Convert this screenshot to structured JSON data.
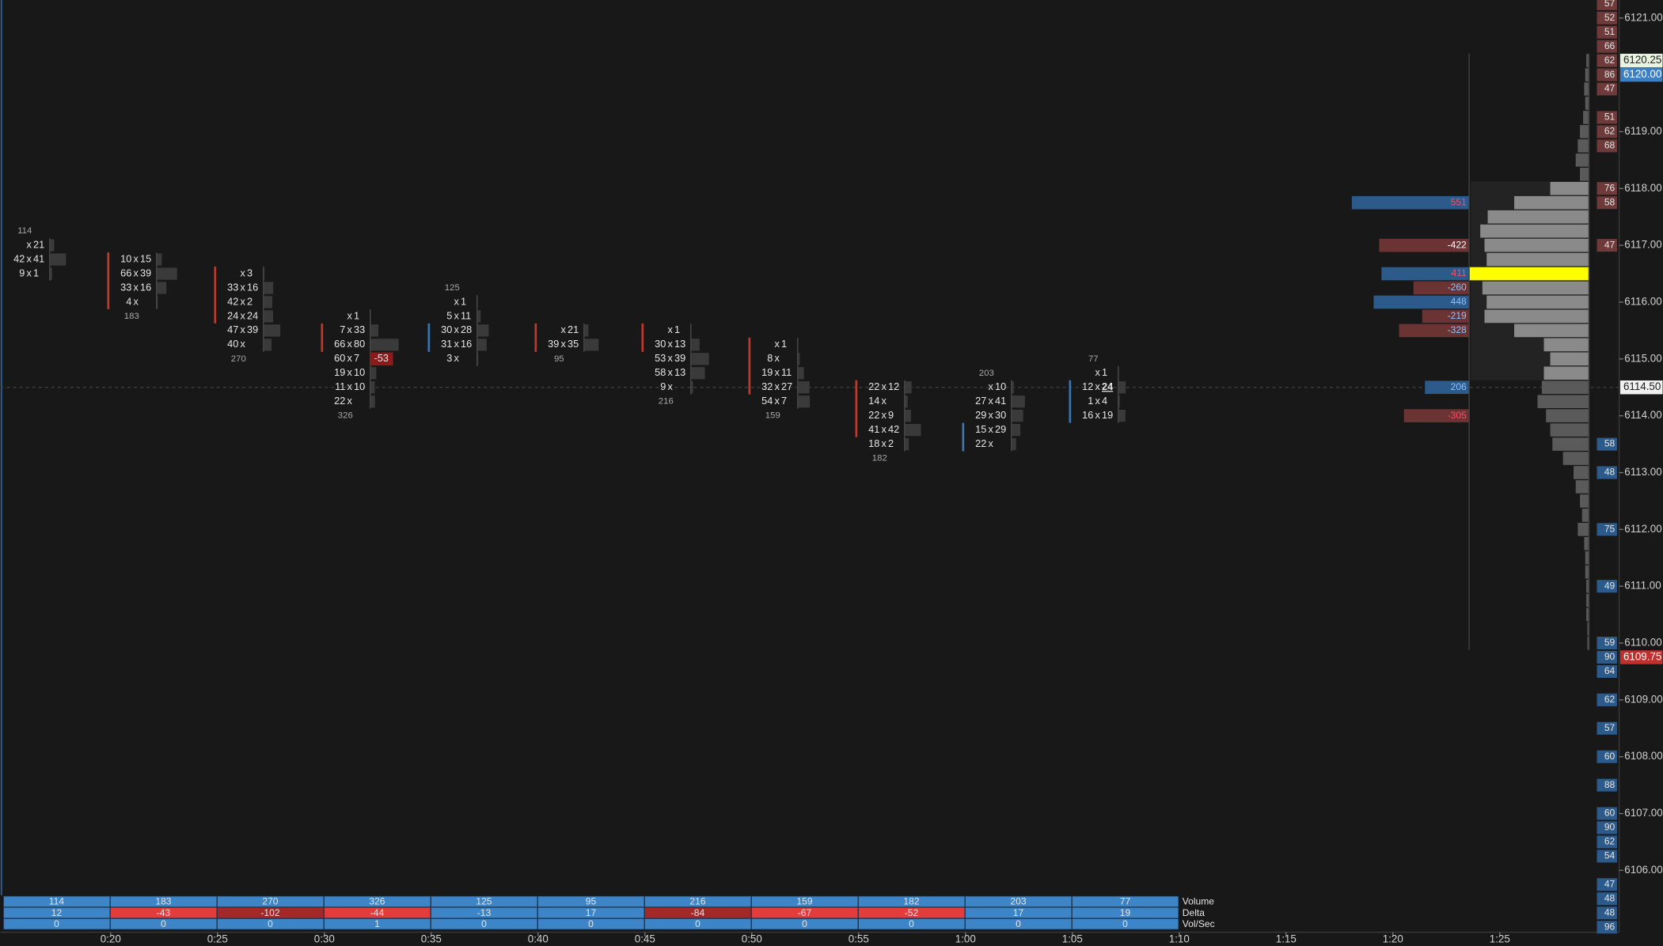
{
  "price_axis": {
    "ticks": [
      {
        "value": 6121,
        "label": "6121.00"
      },
      {
        "value": 6119,
        "label": "6119.00"
      },
      {
        "value": 6118,
        "label": "6118.00"
      },
      {
        "value": 6117,
        "label": "6117.00"
      },
      {
        "value": 6116,
        "label": "6116.00"
      },
      {
        "value": 6115,
        "label": "6115.00"
      },
      {
        "value": 6114,
        "label": "6114.00"
      },
      {
        "value": 6113,
        "label": "6113.00"
      },
      {
        "value": 6112,
        "label": "6112.00"
      },
      {
        "value": 6111,
        "label": "6111.00"
      },
      {
        "value": 6110,
        "label": "6110.00"
      },
      {
        "value": 6109,
        "label": "6109.00"
      },
      {
        "value": 6108,
        "label": "6108.00"
      },
      {
        "value": 6107,
        "label": "6107.00"
      },
      {
        "value": 6106,
        "label": "6106.00"
      }
    ],
    "markers": [
      {
        "value": 6120.25,
        "label": "6120.25",
        "bg": "#e8f4e0",
        "fg": "#202020"
      },
      {
        "value": 6120,
        "label": "6120.00",
        "bg": "#3d7fc0",
        "fg": "#ffffff"
      },
      {
        "value": 6114.5,
        "label": "6114.50",
        "bg": "#f0f0f0",
        "fg": "#202020"
      },
      {
        "value": 6109.75,
        "label": "6109.75",
        "bg": "#c0302c",
        "fg": "#ffffff"
      }
    ],
    "last_price": 6114.5
  },
  "time_axis": {
    "labels": [
      "0:20",
      "0:25",
      "0:30",
      "0:35",
      "0:40",
      "0:45",
      "0:50",
      "0:55",
      "1:00",
      "1:05",
      "1:10",
      "1:15",
      "1:20",
      "1:25"
    ]
  },
  "footprint": {
    "separator": "x",
    "up_color": "#3a75b0",
    "down_color": "#c0392b",
    "bars": [
      {
        "total": 114,
        "total_price": 6117.25,
        "rows": [
          {
            "price": 6117,
            "bid": null,
            "ask": 21
          },
          {
            "price": 6116.75,
            "bid": 42,
            "ask": 41
          },
          {
            "price": 6116.5,
            "bid": 9,
            "ask": 1
          }
        ]
      },
      {
        "total": 183,
        "total_price": 6115.75,
        "candle": {
          "top": 6116.75,
          "bottom": 6116,
          "dir": "down"
        },
        "rows": [
          {
            "price": 6116.75,
            "bid": 10,
            "ask": 15
          },
          {
            "price": 6116.5,
            "bid": 66,
            "ask": 39
          },
          {
            "price": 6116.25,
            "bid": 33,
            "ask": 16
          },
          {
            "price": 6116,
            "bid": 4,
            "ask": null
          }
        ]
      },
      {
        "total": 270,
        "total_price": 6115,
        "candle": {
          "top": 6116.5,
          "bottom": 6115.75,
          "dir": "down"
        },
        "rows": [
          {
            "price": 6116.5,
            "bid": null,
            "ask": 3
          },
          {
            "price": 6116.25,
            "bid": 33,
            "ask": 16
          },
          {
            "price": 6116,
            "bid": 42,
            "ask": 2
          },
          {
            "price": 6115.75,
            "bid": 24,
            "ask": 24
          },
          {
            "price": 6115.5,
            "bid": 47,
            "ask": 39
          },
          {
            "price": 6115.25,
            "bid": 40,
            "ask": null
          }
        ]
      },
      {
        "total": 326,
        "total_price": 6114,
        "candle": {
          "top": 6115.5,
          "bottom": 6115.25,
          "dir": "down"
        },
        "rows": [
          {
            "price": 6115.75,
            "bid": null,
            "ask": 1
          },
          {
            "price": 6115.5,
            "bid": 7,
            "ask": 33
          },
          {
            "price": 6115.25,
            "bid": 66,
            "ask": 80
          },
          {
            "price": 6115,
            "bid": 60,
            "ask": 7,
            "imbalance": -53
          },
          {
            "price": 6114.75,
            "bid": 19,
            "ask": 10
          },
          {
            "price": 6114.5,
            "bid": 11,
            "ask": 10
          },
          {
            "price": 6114.25,
            "bid": 22,
            "ask": null
          }
        ]
      },
      {
        "total": 125,
        "total_price": 6116.25,
        "candle": {
          "top": 6115.5,
          "bottom": 6115.25,
          "dir": "up"
        },
        "rows": [
          {
            "price": 6116,
            "bid": null,
            "ask": 1
          },
          {
            "price": 6115.75,
            "bid": 5,
            "ask": 11
          },
          {
            "price": 6115.5,
            "bid": 30,
            "ask": 28
          },
          {
            "price": 6115.25,
            "bid": 31,
            "ask": 16
          },
          {
            "price": 6115,
            "bid": 3,
            "ask": null
          }
        ]
      },
      {
        "total": 95,
        "total_price": 6115,
        "candle": {
          "top": 6115.5,
          "bottom": 6115.25,
          "dir": "down"
        },
        "rows": [
          {
            "price": 6115.5,
            "bid": null,
            "ask": 21
          },
          {
            "price": 6115.25,
            "bid": 39,
            "ask": 35
          }
        ]
      },
      {
        "total": 216,
        "total_price": 6114.25,
        "candle": {
          "top": 6115.5,
          "bottom": 6115.25,
          "dir": "down"
        },
        "rows": [
          {
            "price": 6115.5,
            "bid": null,
            "ask": 1
          },
          {
            "price": 6115.25,
            "bid": 30,
            "ask": 13
          },
          {
            "price": 6115,
            "bid": 53,
            "ask": 39
          },
          {
            "price": 6114.75,
            "bid": 58,
            "ask": 13
          },
          {
            "price": 6114.5,
            "bid": 9,
            "ask": null
          }
        ]
      },
      {
        "total": 159,
        "total_price": 6114,
        "candle": {
          "top": 6115.25,
          "bottom": 6114.5,
          "dir": "down"
        },
        "rows": [
          {
            "price": 6115.25,
            "bid": null,
            "ask": 1
          },
          {
            "price": 6115,
            "bid": 8,
            "ask": null
          },
          {
            "price": 6114.75,
            "bid": 19,
            "ask": 11
          },
          {
            "price": 6114.5,
            "bid": 32,
            "ask": 27
          },
          {
            "price": 6114.25,
            "bid": 54,
            "ask": 7
          }
        ]
      },
      {
        "total": 182,
        "total_price": 6113.25,
        "candle": {
          "top": 6114.5,
          "bottom": 6113.75,
          "dir": "down"
        },
        "rows": [
          {
            "price": 6114.5,
            "bid": 22,
            "ask": 12
          },
          {
            "price": 6114.25,
            "bid": 14,
            "ask": null
          },
          {
            "price": 6114,
            "bid": 22,
            "ask": 9
          },
          {
            "price": 6113.75,
            "bid": 41,
            "ask": 42
          },
          {
            "price": 6113.5,
            "bid": 18,
            "ask": 2
          }
        ]
      },
      {
        "total": 203,
        "total_price": 6114.75,
        "candle": {
          "top": 6113.75,
          "bottom": 6113.5,
          "dir": "up"
        },
        "rows": [
          {
            "price": 6114.5,
            "bid": null,
            "ask": 10
          },
          {
            "price": 6114.25,
            "bid": 27,
            "ask": 41
          },
          {
            "price": 6114,
            "bid": 29,
            "ask": 30
          },
          {
            "price": 6113.75,
            "bid": 15,
            "ask": 29
          },
          {
            "price": 6113.5,
            "bid": 22,
            "ask": null
          }
        ]
      },
      {
        "total": 77,
        "total_price": 6115,
        "candle": {
          "top": 6114.5,
          "bottom": 6114,
          "dir": "up"
        },
        "rows": [
          {
            "price": 6114.75,
            "bid": null,
            "ask": 1
          },
          {
            "price": 6114.5,
            "bid": 12,
            "ask": 24,
            "ask_bold": true
          },
          {
            "price": 6114.25,
            "bid": 1,
            "ask": 4
          },
          {
            "price": 6114,
            "bid": 16,
            "ask": 19
          }
        ]
      }
    ]
  },
  "delta_profile": {
    "pos_color": "#2c5a8a",
    "neg_color": "#6b3333",
    "levels": [
      {
        "price": 6117.75,
        "value": 551,
        "label_color": "#ff4d6a"
      },
      {
        "price": 6117,
        "value": -422,
        "label_color": "#ffffff"
      },
      {
        "price": 6116.5,
        "value": 411,
        "label_color": "#ff4d6a"
      },
      {
        "price": 6116.25,
        "value": -260,
        "label_color": "#8fc3ff"
      },
      {
        "price": 6116,
        "value": 448,
        "label_color": "#8fc3ff"
      },
      {
        "price": 6115.75,
        "value": -219,
        "label_color": "#8fc3ff"
      },
      {
        "price": 6115.5,
        "value": -328,
        "label_color": "#8fc3ff"
      },
      {
        "price": 6114.5,
        "value": 206,
        "label_color": "#8fc3ff"
      },
      {
        "price": 6114,
        "value": -305,
        "label_color": "#ff4d6a"
      }
    ]
  },
  "volume_profile": {
    "poc": 6116.5,
    "value_area": [
      6118,
      6114.75
    ],
    "color": "#5a5a5a",
    "va_color": "#8a8a8a",
    "poc_color": "#ffff00",
    "levels": [
      {
        "price": 6120.25,
        "volume": 2
      },
      {
        "price": 6120,
        "volume": 3
      },
      {
        "price": 6119.75,
        "volume": 4
      },
      {
        "price": 6119.5,
        "volume": 3
      },
      {
        "price": 6119.25,
        "volume": 5
      },
      {
        "price": 6119,
        "volume": 8
      },
      {
        "price": 6118.75,
        "volume": 10
      },
      {
        "price": 6118.5,
        "volume": 12
      },
      {
        "price": 6118.25,
        "volume": 8
      },
      {
        "price": 6118,
        "volume": 36
      },
      {
        "price": 6117.75,
        "volume": 70
      },
      {
        "price": 6117.5,
        "volume": 95
      },
      {
        "price": 6117.25,
        "volume": 102
      },
      {
        "price": 6117,
        "volume": 98
      },
      {
        "price": 6116.75,
        "volume": 96
      },
      {
        "price": 6116.5,
        "volume": 112
      },
      {
        "price": 6116.25,
        "volume": 100
      },
      {
        "price": 6116,
        "volume": 96
      },
      {
        "price": 6115.75,
        "volume": 98
      },
      {
        "price": 6115.5,
        "volume": 70
      },
      {
        "price": 6115.25,
        "volume": 42
      },
      {
        "price": 6115,
        "volume": 36
      },
      {
        "price": 6114.75,
        "volume": 42
      },
      {
        "price": 6114.5,
        "volume": 44
      },
      {
        "price": 6114.25,
        "volume": 48
      },
      {
        "price": 6114,
        "volume": 40
      },
      {
        "price": 6113.75,
        "volume": 36
      },
      {
        "price": 6113.5,
        "volume": 34
      },
      {
        "price": 6113.25,
        "volume": 24
      },
      {
        "price": 6113,
        "volume": 14
      },
      {
        "price": 6112.75,
        "volume": 12
      },
      {
        "price": 6112.5,
        "volume": 8
      },
      {
        "price": 6112.25,
        "volume": 6
      },
      {
        "price": 6112,
        "volume": 10
      },
      {
        "price": 6111.75,
        "volume": 4
      },
      {
        "price": 6111.5,
        "volume": 3
      },
      {
        "price": 6111.25,
        "volume": 3
      },
      {
        "price": 6111,
        "volume": 2
      },
      {
        "price": 6110.75,
        "volume": 2
      },
      {
        "price": 6110.5,
        "volume": 2
      },
      {
        "price": 6110.25,
        "volume": 1
      },
      {
        "price": 6110,
        "volume": 1
      }
    ]
  },
  "dom": {
    "ask_color": "#6e3a3a",
    "bid_color": "#2c5a8a",
    "levels": [
      {
        "price": 6121.25,
        "size": 57
      },
      {
        "price": 6121,
        "size": 52
      },
      {
        "price": 6120.75,
        "size": 51
      },
      {
        "price": 6120.5,
        "size": 66
      },
      {
        "price": 6120.25,
        "size": 62
      },
      {
        "price": 6120,
        "size": 86
      },
      {
        "price": 6119.75,
        "size": 47
      },
      {
        "price": 6119.25,
        "size": 51
      },
      {
        "price": 6119,
        "size": 62
      },
      {
        "price": 6118.75,
        "size": 68
      },
      {
        "price": 6118,
        "size": 76
      },
      {
        "price": 6117.75,
        "size": 58
      },
      {
        "price": 6117,
        "size": 47
      },
      {
        "price": 6113.5,
        "size": 58
      },
      {
        "price": 6113,
        "size": 48
      },
      {
        "price": 6112,
        "size": 75
      },
      {
        "price": 6111,
        "size": 49
      },
      {
        "price": 6110,
        "size": 59
      },
      {
        "price": 6109.75,
        "size": 90
      },
      {
        "price": 6109.5,
        "size": 64
      },
      {
        "price": 6109,
        "size": 62
      },
      {
        "price": 6108.5,
        "size": 57
      },
      {
        "price": 6108,
        "size": 60
      },
      {
        "price": 6107.5,
        "size": 88
      },
      {
        "price": 6107,
        "size": 60
      },
      {
        "price": 6106.75,
        "size": 90
      },
      {
        "price": 6106.5,
        "size": 62
      },
      {
        "price": 6106.25,
        "size": 54
      },
      {
        "price": 6105.75,
        "size": 47
      },
      {
        "price": 6105.5,
        "size": 48
      },
      {
        "price": 6105.25,
        "size": 48
      },
      {
        "price": 6105,
        "size": 96
      }
    ]
  },
  "summary": {
    "labels": [
      "Volume",
      "Delta",
      "Vol/Sec"
    ],
    "color": "#3d85c6",
    "volume": [
      114,
      183,
      270,
      326,
      125,
      95,
      216,
      159,
      182,
      203,
      77
    ],
    "delta": [
      12,
      -43,
      -102,
      -44,
      -13,
      17,
      -84,
      -67,
      -52,
      17,
      19
    ],
    "delta_colors": [
      "#3d85c6",
      "#e23c3c",
      "#a52828",
      "#e23c3c",
      "#3d85c6",
      "#3d85c6",
      "#a52828",
      "#e23c3c",
      "#e23c3c",
      "#3d85c6",
      "#3d85c6"
    ],
    "vol_sec": [
      0,
      0,
      0,
      1,
      0,
      0,
      0,
      0,
      0,
      0,
      0
    ]
  }
}
